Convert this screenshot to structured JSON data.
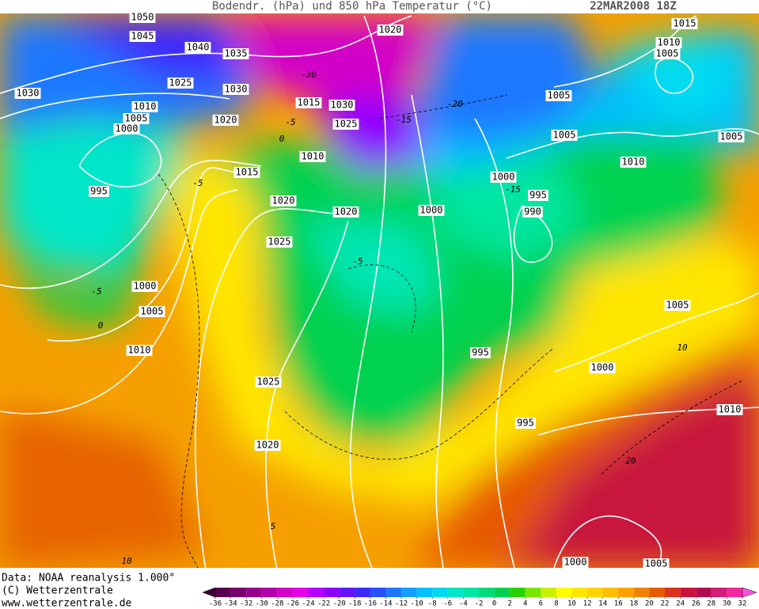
{
  "header": {
    "title": "Bodendr. (hPa) und 850 hPa Temperatur (°C)",
    "date": "22MAR2008 18Z"
  },
  "isobar_labels": [
    1050,
    1045,
    1040,
    1035,
    1030,
    1025,
    1030,
    1010,
    1005,
    1000,
    1020,
    1015,
    1030,
    1025,
    1010,
    1015,
    995,
    1020,
    1020,
    1025,
    1000,
    1000,
    995,
    990,
    1020,
    1005,
    1005,
    1010,
    1005,
    1015,
    1010,
    1005,
    1000,
    1005,
    1010,
    1025,
    1020,
    995,
    1000,
    995,
    1005,
    1010,
    1000,
    1005
  ],
  "temperature_labels": [
    -30,
    -20,
    -15,
    -15,
    -5,
    0,
    -5,
    -5,
    0,
    -5,
    5,
    10,
    10,
    20
  ],
  "footer": [
    "Data: NOAA reanalysis 1.000°",
    "(C) Wetterzentrale",
    "www.wetterzentrale.de"
  ],
  "colorbar": {
    "ticks": [
      -36,
      -34,
      -32,
      -30,
      -28,
      -26,
      -24,
      -22,
      -20,
      -18,
      -16,
      -14,
      -12,
      -10,
      -8,
      -6,
      -4,
      -2,
      0,
      2,
      4,
      6,
      8,
      10,
      12,
      14,
      16,
      18,
      20,
      22,
      24,
      26,
      28,
      30,
      32
    ],
    "colors": [
      "#3c0032",
      "#5a0050",
      "#78006e",
      "#96008c",
      "#b400aa",
      "#d200c8",
      "#e600e6",
      "#b400ff",
      "#8c00ff",
      "#6414ff",
      "#3c28ff",
      "#2850ff",
      "#1e78ff",
      "#14a0ff",
      "#00c0ff",
      "#00d8f0",
      "#00e6c8",
      "#00e6a0",
      "#00dc78",
      "#00d250",
      "#28d200",
      "#78e600",
      "#c8f000",
      "#ffff00",
      "#ffe600",
      "#ffd200",
      "#ffbe00",
      "#ffa000",
      "#f08200",
      "#e65a00",
      "#dc321e",
      "#c8143c",
      "#b40a50",
      "#d21e78",
      "#f0289b",
      "#ff50e6"
    ]
  }
}
